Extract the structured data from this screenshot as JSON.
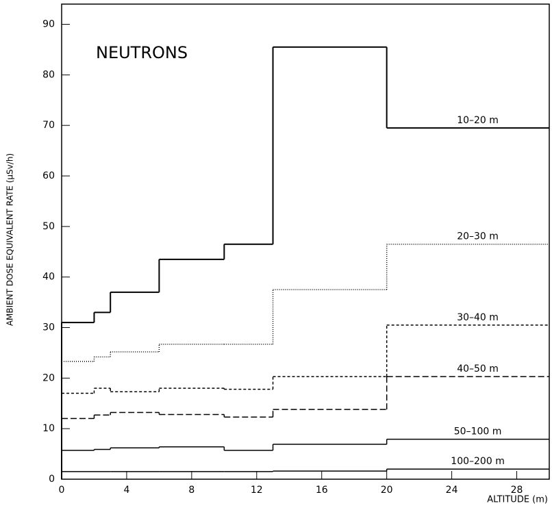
{
  "chart_data": {
    "type": "histogram",
    "annotation": "NEUTRONS",
    "x_label": "ALTITUDE (m)",
    "y_label": "AMBIENT DOSE EQUIVALENT RATE (μSv/h)",
    "bins": [
      0,
      2,
      3,
      6,
      10,
      13,
      20,
      30
    ],
    "series": [
      {
        "name": "10–20 m",
        "color": "#000000",
        "dash": "none",
        "values": [
          31,
          33,
          37,
          43.5,
          46.5,
          85.5,
          69.5
        ]
      },
      {
        "name": "20–30 m",
        "color": "#000000",
        "dash": "1,2",
        "values": [
          23.3,
          24.2,
          25.2,
          26.7,
          26.7,
          37.5,
          46.5
        ]
      },
      {
        "name": "30–40 m",
        "color": "#000000",
        "dash": "4,3",
        "values": [
          17,
          18,
          17.3,
          18,
          17.8,
          20.3,
          30.5
        ]
      },
      {
        "name": "40–50 m",
        "color": "#000000",
        "dash": "9,4",
        "values": [
          12,
          12.7,
          13.2,
          12.8,
          12.3,
          13.8,
          20.3
        ]
      },
      {
        "name": "50–100 m",
        "color": "#000000",
        "dash": "none",
        "values": [
          5.7,
          5.9,
          6.2,
          6.4,
          5.7,
          6.9,
          7.9
        ]
      },
      {
        "name": "100–200 m",
        "color": "#000000",
        "dash": "none",
        "values": [
          1.5,
          1.5,
          1.5,
          1.5,
          1.5,
          1.6,
          2
        ]
      }
    ],
    "xlim": [
      0,
      30
    ],
    "xticks": [
      0,
      4,
      8,
      12,
      16,
      20,
      24,
      28
    ],
    "ylim": [
      0,
      94
    ],
    "yticks": [
      0,
      10,
      20,
      30,
      40,
      50,
      60,
      70,
      80,
      90
    ]
  }
}
